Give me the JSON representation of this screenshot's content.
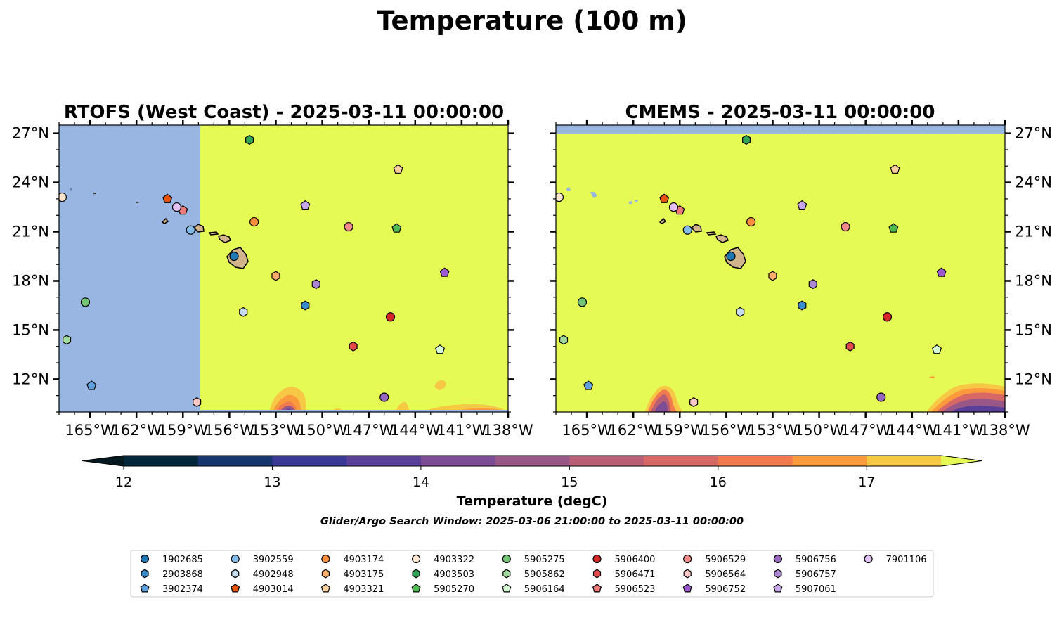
{
  "title": "Temperature (100 m)",
  "chart_data": [
    {
      "type": "contour-map",
      "title": "RTOFS (West Coast) - 2025-03-11 00:00:00",
      "xlim": [
        -167,
        -138
      ],
      "ylim": [
        10,
        27.5
      ],
      "xticks": [
        -165,
        -162,
        -159,
        -156,
        -153,
        -150,
        -147,
        -144,
        -141,
        -138
      ],
      "xtick_labels": [
        "165°W",
        "162°W",
        "159°W",
        "156°W",
        "153°W",
        "150°W",
        "147°W",
        "144°W",
        "141°W",
        "138°W"
      ],
      "yticks": [
        12,
        15,
        18,
        21,
        24,
        27
      ],
      "ytick_labels": [
        "12°N",
        "15°N",
        "18°N",
        "21°N",
        "24°N",
        "27°N"
      ],
      "y_axis_side": "left",
      "data_lon_min": -157.9,
      "dominant_value": "> 17.5 degC",
      "background_color": "#e6fa55",
      "nodata_color": "#98b6e1"
    },
    {
      "type": "contour-map",
      "title": "CMEMS - 2025-03-11 00:00:00",
      "xlim": [
        -167,
        -138
      ],
      "ylim": [
        10,
        27.5
      ],
      "xticks": [
        -165,
        -162,
        -159,
        -156,
        -153,
        -150,
        -147,
        -144,
        -141,
        -138
      ],
      "xtick_labels": [
        "165°W",
        "162°W",
        "159°W",
        "156°W",
        "153°W",
        "150°W",
        "147°W",
        "144°W",
        "141°W",
        "138°W"
      ],
      "yticks": [
        12,
        15,
        18,
        21,
        24,
        27
      ],
      "ytick_labels": [
        "12°N",
        "15°N",
        "18°N",
        "21°N",
        "24°N",
        "27°N"
      ],
      "y_axis_side": "right",
      "data_lat_max": 27.1,
      "dominant_value": "> 17.5 degC",
      "background_color": "#e6fa55",
      "nodata_color": "#98b6e1"
    }
  ],
  "colorbar": {
    "label": "Temperature (degC)",
    "tick_values": [
      12,
      13,
      14,
      15,
      16,
      17
    ],
    "tick_labels": [
      "12",
      "13",
      "14",
      "15",
      "16",
      "17"
    ],
    "range": [
      12,
      17.5
    ],
    "step": 0.5,
    "colors": [
      "#03263b",
      "#17356f",
      "#3a3a96",
      "#5a3f98",
      "#7c4c94",
      "#995787",
      "#b95f75",
      "#d76866",
      "#f17b4f",
      "#fb9a3d",
      "#f7c846"
    ],
    "under_color": "#041820",
    "over_color": "#e6fa55"
  },
  "search_window": "Glider/Argo Search Window: 2025-03-06 21:00:00 to 2025-03-11 00:00:00",
  "floats": [
    {
      "id": "1902685",
      "lon": -155.7,
      "lat": 19.5,
      "marker": "circle",
      "color": "#1f77b4"
    },
    {
      "id": "2903868",
      "lon": -151.1,
      "lat": 16.5,
      "marker": "hexagon",
      "color": "#3a89c9"
    },
    {
      "id": "3902374",
      "lon": -164.9,
      "lat": 11.6,
      "marker": "pentagon",
      "color": "#5fa2dd"
    },
    {
      "id": "3902559",
      "lon": -158.5,
      "lat": 21.1,
      "marker": "circle",
      "color": "#85bbe8"
    },
    {
      "id": "4902948",
      "lon": -155.1,
      "lat": 16.1,
      "marker": "hexagon",
      "color": "#c6dbef"
    },
    {
      "id": "4903014",
      "lon": -160.0,
      "lat": 23.0,
      "marker": "pentagon",
      "color": "#e6550d"
    },
    {
      "id": "4903174",
      "lon": -154.4,
      "lat": 21.6,
      "marker": "circle",
      "color": "#fd8d3c"
    },
    {
      "id": "4903175",
      "lon": -153.0,
      "lat": 18.3,
      "marker": "hexagon",
      "color": "#fdae6b"
    },
    {
      "id": "4903321",
      "lon": -145.1,
      "lat": 24.8,
      "marker": "pentagon",
      "color": "#fdd0a2"
    },
    {
      "id": "4903322",
      "lon": -166.8,
      "lat": 23.1,
      "marker": "circle",
      "color": "#fee6ce"
    },
    {
      "id": "4903503",
      "lon": -154.7,
      "lat": 26.6,
      "marker": "hexagon",
      "color": "#31a354"
    },
    {
      "id": "5905270",
      "lon": -145.2,
      "lat": 21.2,
      "marker": "pentagon",
      "color": "#4fba4f"
    },
    {
      "id": "5905275",
      "lon": -165.3,
      "lat": 16.7,
      "marker": "circle",
      "color": "#74c476"
    },
    {
      "id": "5905862",
      "lon": -166.5,
      "lat": 14.4,
      "marker": "hexagon",
      "color": "#a1d99b"
    },
    {
      "id": "5906164",
      "lon": -142.4,
      "lat": 13.8,
      "marker": "pentagon",
      "color": "#d7ffd7"
    },
    {
      "id": "5906400",
      "lon": -145.6,
      "lat": 15.8,
      "marker": "circle",
      "color": "#d62728"
    },
    {
      "id": "5906471",
      "lon": -148.0,
      "lat": 14.0,
      "marker": "hexagon",
      "color": "#e04a4a"
    },
    {
      "id": "5906523",
      "lon": -159.0,
      "lat": 22.3,
      "marker": "pentagon",
      "color": "#ee7b7b"
    },
    {
      "id": "5906529",
      "lon": -148.3,
      "lat": 21.3,
      "marker": "circle",
      "color": "#f08a8a"
    },
    {
      "id": "5906564",
      "lon": -158.1,
      "lat": 10.6,
      "marker": "hexagon",
      "color": "#fbc8c8"
    },
    {
      "id": "5906752",
      "lon": -142.1,
      "lat": 18.5,
      "marker": "pentagon",
      "color": "#9e5bcf"
    },
    {
      "id": "5906756",
      "lon": -146.0,
      "lat": 10.9,
      "marker": "circle",
      "color": "#9467bd"
    },
    {
      "id": "5906757",
      "lon": -150.4,
      "lat": 17.8,
      "marker": "hexagon",
      "color": "#ad86d6"
    },
    {
      "id": "5907061",
      "lon": -151.1,
      "lat": 22.6,
      "marker": "pentagon",
      "color": "#c6a5eb"
    },
    {
      "id": "7901106",
      "lon": -159.4,
      "lat": 22.5,
      "marker": "circle",
      "color": "#e3c0f5"
    }
  ]
}
